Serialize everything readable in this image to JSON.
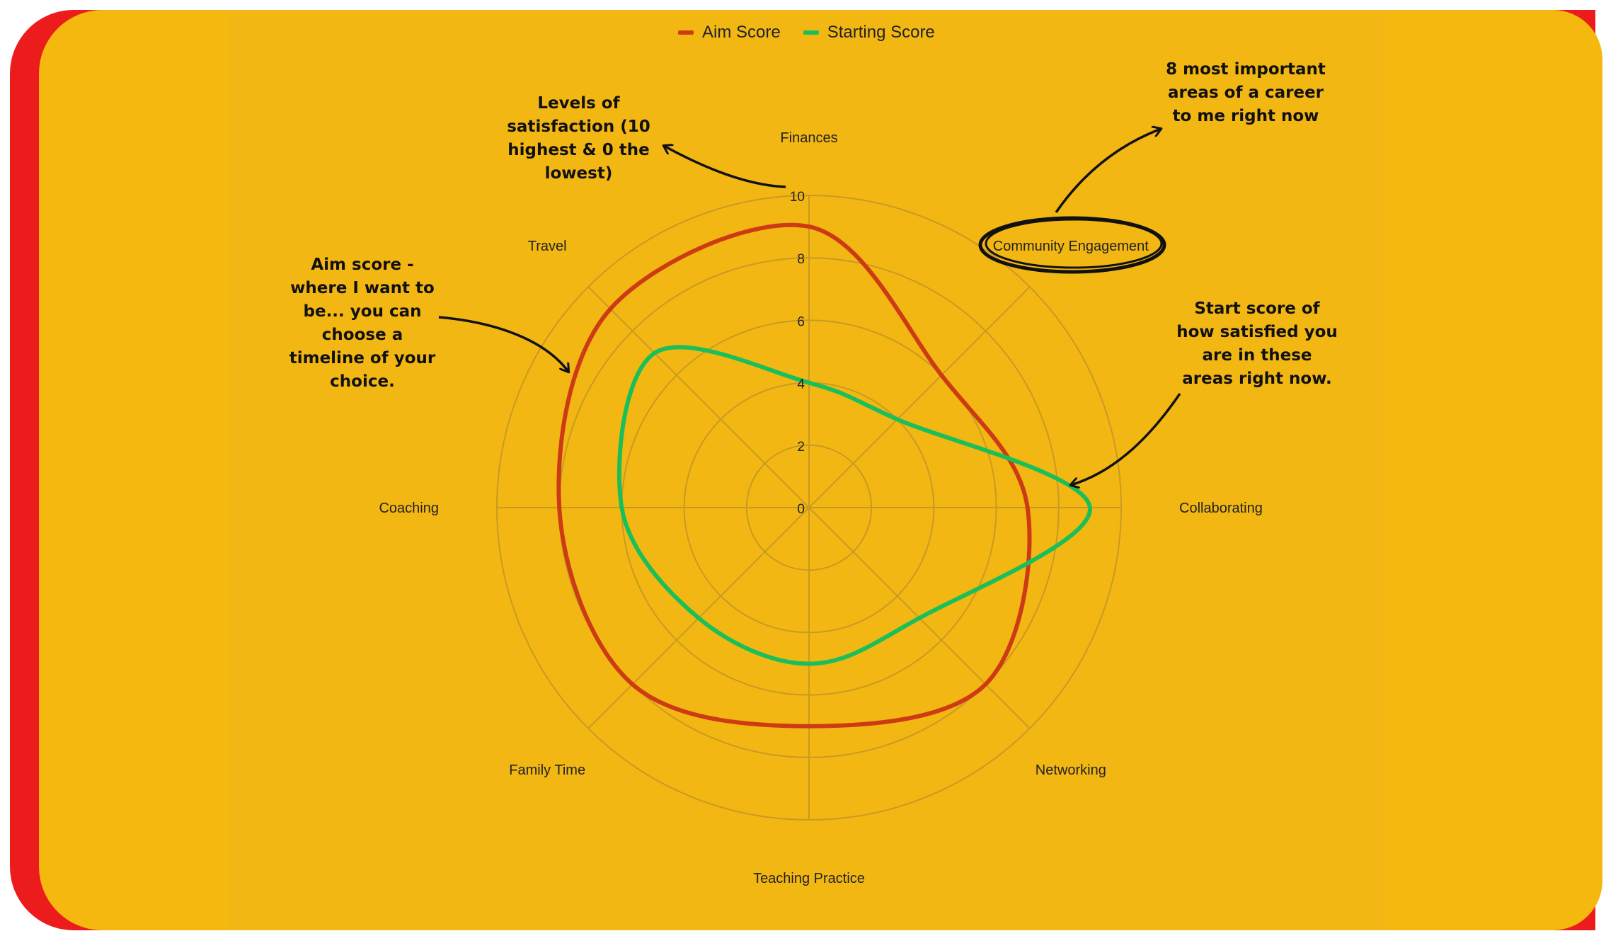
{
  "colors": {
    "aim": "#cd3b14",
    "start": "#1bbf5a",
    "grid": "#c99a22",
    "text": "#222222"
  },
  "chart_data": {
    "type": "radar",
    "categories": [
      "Finances",
      "Community Engagement",
      "Collaborating",
      "Networking",
      "Teaching Practice",
      "Family Time",
      "Coaching",
      "Travel"
    ],
    "rlim": [
      0,
      10
    ],
    "ticks": [
      "0",
      "2",
      "4",
      "6",
      "8",
      "10"
    ],
    "legend_position": "top-center",
    "series": [
      {
        "name": "Aim Score",
        "values": [
          9,
          6,
          7,
          8,
          7,
          8,
          8,
          9
        ]
      },
      {
        "name": "Starting Score",
        "values": [
          4,
          4,
          9,
          5,
          5,
          5,
          6,
          7
        ]
      }
    ]
  },
  "annotations": {
    "levels": "Levels of satisfaction (10 highest & 0 the lowest)",
    "areas": "8 most important areas of a career to me right now",
    "aim": "Aim score - where I want to be... you can choose a timeline of your choice.",
    "start": "Start score of how satisfied you are in these areas right now."
  }
}
